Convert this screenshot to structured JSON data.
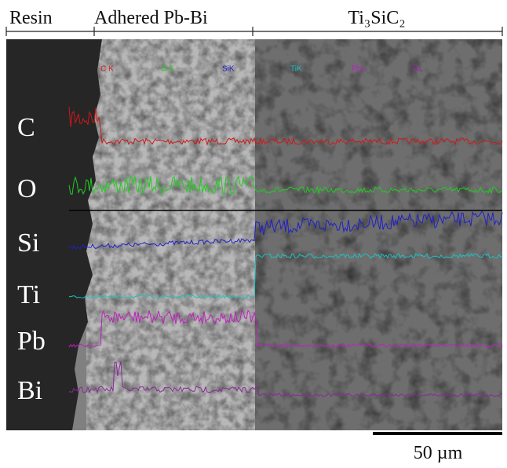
{
  "regions": [
    "Resin",
    "Adhered Pb-Bi",
    "Ti₃SiC₂"
  ],
  "elements": [
    "C",
    "O",
    "Si",
    "Ti",
    "Pb",
    "Bi"
  ],
  "line_scan_labels": [
    {
      "text": "C K",
      "color": "#d01818"
    },
    {
      "text": "O K",
      "color": "#22cc22"
    },
    {
      "text": "SiK",
      "color": "#2020c8"
    },
    {
      "text": "TiK",
      "color": "#20c0c0"
    },
    {
      "text": "PbL",
      "color": "#c020c0"
    },
    {
      "text": "BiL",
      "color": "#8a2a9a"
    }
  ],
  "scale_bar": "50 µm"
}
